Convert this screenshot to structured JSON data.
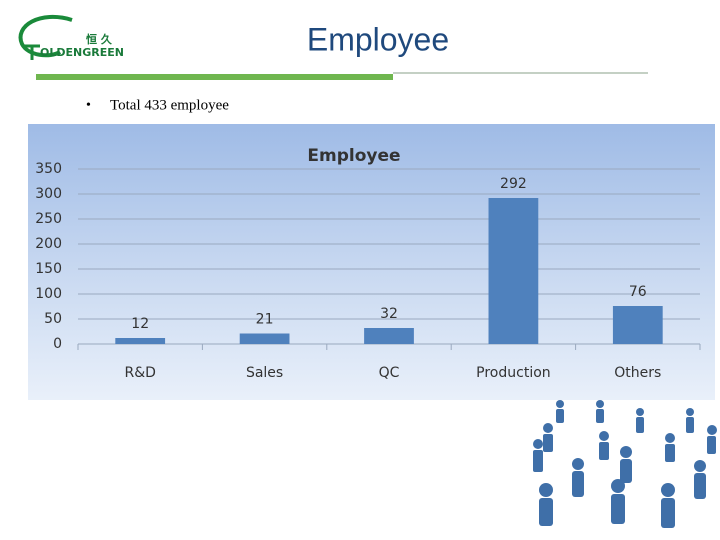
{
  "logo": {
    "chinese": "恒 久",
    "name": "OLDENGREEN"
  },
  "title": "Employee",
  "bullet": "Total 433 employee",
  "chart_data": {
    "type": "bar",
    "title": "Employee",
    "categories": [
      "R&D",
      "Sales",
      "QC",
      "Production",
      "Others"
    ],
    "values": [
      12,
      21,
      32,
      292,
      76
    ],
    "color": "#4f81bd",
    "ylim": [
      0,
      350
    ],
    "yticks": [
      0,
      50,
      100,
      150,
      200,
      250,
      300,
      350
    ],
    "grid": true
  }
}
